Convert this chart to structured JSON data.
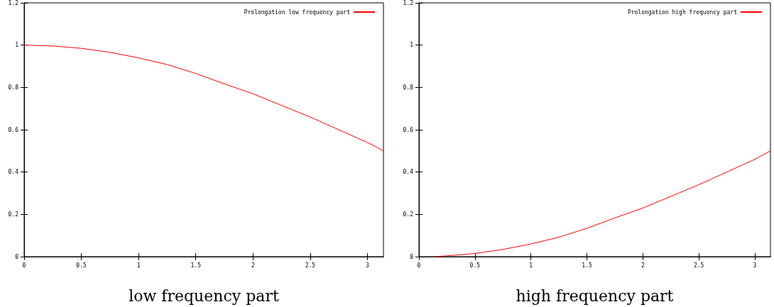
{
  "chart_data": [
    {
      "type": "line",
      "xlabel": "low frequency part",
      "x": [
        0,
        0.25,
        0.5,
        0.75,
        1,
        1.25,
        1.5,
        1.75,
        2,
        2.25,
        2.5,
        2.75,
        3,
        3.14
      ],
      "series": [
        {
          "name": "Prolongation low frequency part",
          "color": "#ff0000",
          "values": [
            1,
            0.996,
            0.985,
            0.966,
            0.94,
            0.908,
            0.866,
            0.817,
            0.77,
            0.715,
            0.66,
            0.6,
            0.54,
            0.5
          ]
        }
      ],
      "xlim": [
        0,
        3.14
      ],
      "xticks": [
        0,
        0.5,
        1,
        1.5,
        2,
        2.5,
        3
      ],
      "ylim": [
        0,
        1.2
      ],
      "yticks": [
        0,
        0.2,
        0.4,
        0.6,
        0.8,
        1,
        1.2
      ],
      "grid": false,
      "legend": "top right",
      "marker": "none"
    },
    {
      "type": "line",
      "xlabel": "high frequency part",
      "x": [
        0.13,
        0.25,
        0.5,
        0.75,
        1,
        1.25,
        1.5,
        1.75,
        2,
        2.25,
        2.5,
        2.75,
        3,
        3.14
      ],
      "series": [
        {
          "name": "Prolongation high frequency part",
          "color": "#ff0000",
          "values": [
            0,
            0.004,
            0.015,
            0.034,
            0.06,
            0.092,
            0.134,
            0.183,
            0.23,
            0.285,
            0.34,
            0.4,
            0.46,
            0.5
          ]
        }
      ],
      "xlim": [
        0,
        3.14
      ],
      "xticks": [
        0,
        0.5,
        1,
        1.5,
        2,
        2.5,
        3
      ],
      "ylim": [
        0,
        1.2
      ],
      "yticks": [
        0,
        0.2,
        0.4,
        0.6,
        0.8,
        1,
        1.2
      ],
      "grid": false,
      "legend": "top right",
      "marker": "none"
    }
  ]
}
